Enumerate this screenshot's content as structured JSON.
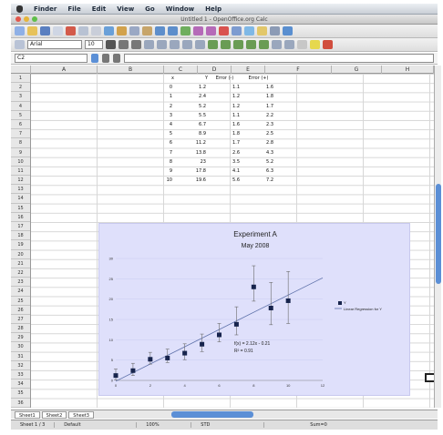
{
  "menubar": {
    "items": [
      "Finder",
      "File",
      "Edit",
      "View",
      "Go",
      "Window",
      "Help"
    ]
  },
  "window": {
    "title": "Untitled 1 - OpenOffice.org Calc"
  },
  "toolbar2": {
    "font_name": "Arial",
    "font_size": "10"
  },
  "formula": {
    "cell_ref": "C2",
    "value": ""
  },
  "columns": [
    "A",
    "B",
    "C",
    "D",
    "E",
    "F",
    "G",
    "H"
  ],
  "rows": [
    "1",
    "2",
    "3",
    "4",
    "5",
    "6",
    "7",
    "8",
    "9",
    "10",
    "11",
    "12",
    "13",
    "14",
    "15",
    "16",
    "17",
    "18",
    "19",
    "20",
    "21",
    "22",
    "23",
    "24",
    "25",
    "26",
    "27",
    "28",
    "29",
    "30",
    "31",
    "32",
    "33",
    "34",
    "35",
    "36"
  ],
  "table": {
    "headers": [
      "x",
      "Y",
      "Error (-)",
      "Error (+)"
    ],
    "rows": [
      [
        "0",
        "1.2",
        "1.1",
        "1.6"
      ],
      [
        "1",
        "2.4",
        "1.2",
        "1.8"
      ],
      [
        "2",
        "5.2",
        "1.2",
        "1.7"
      ],
      [
        "3",
        "5.5",
        "1.1",
        "2.2"
      ],
      [
        "4",
        "6.7",
        "1.6",
        "2.3"
      ],
      [
        "5",
        "8.9",
        "1.8",
        "2.5"
      ],
      [
        "6",
        "11.2",
        "1.7",
        "2.8"
      ],
      [
        "7",
        "13.8",
        "2.6",
        "4.3"
      ],
      [
        "8",
        "23",
        "3.5",
        "5.2"
      ],
      [
        "9",
        "17.8",
        "4.1",
        "6.3"
      ],
      [
        "10",
        "19.6",
        "5.6",
        "7.2"
      ]
    ]
  },
  "chart_data": {
    "type": "scatter",
    "title": "Experiment A",
    "subtitle": "May 2008",
    "x": [
      0,
      1,
      2,
      3,
      4,
      5,
      6,
      7,
      8,
      9,
      10
    ],
    "y": [
      1.2,
      2.4,
      5.2,
      5.5,
      6.7,
      8.9,
      11.2,
      13.8,
      23,
      17.8,
      19.6
    ],
    "error_minus": [
      1.1,
      1.2,
      1.2,
      1.1,
      1.6,
      1.8,
      1.7,
      2.6,
      3.5,
      4.1,
      5.6
    ],
    "error_plus": [
      1.6,
      1.8,
      1.7,
      2.2,
      2.3,
      2.5,
      2.8,
      4.3,
      5.2,
      6.3,
      7.2
    ],
    "xlim": [
      0,
      12
    ],
    "ylim": [
      0,
      30
    ],
    "xticks": [
      "0",
      "2",
      "4",
      "6",
      "8",
      "10",
      "12"
    ],
    "yticks": [
      "0",
      "5",
      "10",
      "15",
      "20",
      "25",
      "30"
    ],
    "regression": {
      "slope": 2.12,
      "intercept": -0.21
    },
    "equation": "f(x) = 2.12x - 0.21",
    "r_squared": "R² = 0.91",
    "legend": [
      "Y",
      "Linear Regression for Y"
    ],
    "legend_position": "right",
    "colors": {
      "background": "#dfe0fb",
      "points": "#17244d",
      "line": "#5b6fa8",
      "error": "#6b6b6b"
    }
  },
  "sheet_tabs": [
    "Sheet1",
    "Sheet2",
    "Sheet3"
  ],
  "status": {
    "sheet": "Sheet 1 / 3",
    "style": "Default",
    "zoom": "100%",
    "mode": "STD",
    "sum": "Sum=0"
  }
}
